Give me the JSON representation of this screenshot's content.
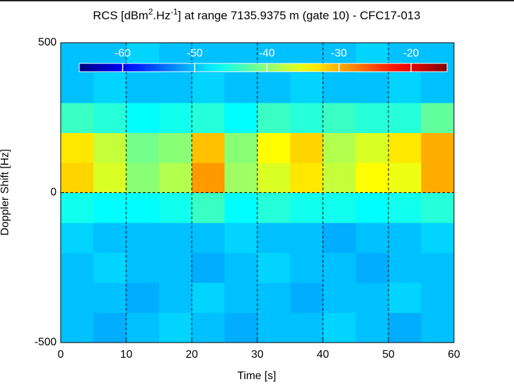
{
  "chart_data": {
    "type": "heatmap",
    "title": {
      "parts": [
        "RCS [dBm",
        "2",
        ".Hz",
        "-1",
        "] at range 7135.9375 m (gate 10) - CFC17-013"
      ]
    },
    "xlabel": "Time [s]",
    "ylabel": "Doppler Shift [Hz]",
    "xlim": [
      0,
      60
    ],
    "xticks": [
      0,
      10,
      20,
      30,
      40,
      50,
      60
    ],
    "ylim": [
      -500,
      500
    ],
    "yticks": [
      -500,
      0,
      500
    ],
    "grid": true,
    "colormap": "jet",
    "clim": [
      -66,
      -15
    ],
    "cticks": [
      -60,
      -50,
      -40,
      -30,
      -20
    ],
    "xbins": [
      0,
      5,
      10,
      15,
      20,
      25,
      30,
      35,
      40,
      45,
      50,
      55,
      60
    ],
    "ybins": [
      -500,
      -400,
      -300,
      -200,
      -100,
      0,
      100,
      200,
      300,
      400,
      500
    ],
    "values": [
      [
        -50,
        -51,
        -50,
        -49,
        -50,
        -51,
        -50,
        -50,
        -49,
        -50,
        -51,
        -50
      ],
      [
        -50,
        -50,
        -51,
        -50,
        -49,
        -50,
        -50,
        -51,
        -50,
        -50,
        -49,
        -50
      ],
      [
        -50,
        -49,
        -50,
        -50,
        -51,
        -50,
        -49,
        -50,
        -50,
        -51,
        -50,
        -50
      ],
      [
        -49,
        -50,
        -50,
        -50,
        -50,
        -49,
        -50,
        -50,
        -51,
        -50,
        -50,
        -49
      ],
      [
        -46,
        -47,
        -47,
        -46,
        -44,
        -47,
        -45,
        -46,
        -46,
        -47,
        -46,
        -45
      ],
      [
        -32,
        -36,
        -40,
        -38,
        -29,
        -39,
        -36,
        -33,
        -37,
        -34,
        -35,
        -30
      ],
      [
        -33,
        -37,
        -41,
        -40,
        -31,
        -40,
        -34,
        -32,
        -38,
        -36,
        -33,
        -30
      ],
      [
        -44,
        -45,
        -47,
        -46,
        -45,
        -47,
        -44,
        -45,
        -44,
        -45,
        -45,
        -42
      ],
      [
        -50,
        -49,
        -50,
        -50,
        -49,
        -50,
        -50,
        -49,
        -50,
        -50,
        -49,
        -50
      ],
      [
        -50,
        -50,
        -49,
        -50,
        -50,
        -50,
        -50,
        -50,
        -50,
        -49,
        -50,
        -50
      ]
    ]
  }
}
